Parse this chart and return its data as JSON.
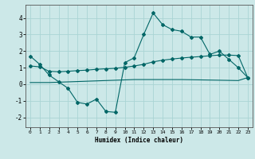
{
  "xlabel": "Humidex (Indice chaleur)",
  "background_color": "#cce8e8",
  "grid_color": "#aad4d4",
  "line_color": "#006666",
  "xlim": [
    -0.5,
    23.5
  ],
  "ylim": [
    -2.6,
    4.8
  ],
  "yticks": [
    -2,
    -1,
    0,
    1,
    2,
    3,
    4
  ],
  "xticks": [
    0,
    1,
    2,
    3,
    4,
    5,
    6,
    7,
    8,
    9,
    10,
    11,
    12,
    13,
    14,
    15,
    16,
    17,
    18,
    19,
    20,
    21,
    22,
    23
  ],
  "line1_x": [
    0,
    1,
    2,
    3,
    4,
    5,
    6,
    7,
    8,
    9,
    10,
    11,
    12,
    13,
    14,
    15,
    16,
    17,
    18,
    19,
    20,
    21,
    22,
    23
  ],
  "line1_y": [
    1.7,
    1.2,
    0.55,
    0.15,
    -0.25,
    -1.1,
    -1.2,
    -0.9,
    -1.65,
    -1.7,
    1.3,
    1.6,
    3.0,
    4.3,
    3.6,
    3.3,
    3.2,
    2.85,
    2.85,
    1.8,
    2.0,
    1.5,
    1.0,
    0.4
  ],
  "line2_x": [
    0,
    1,
    2,
    3,
    4,
    5,
    6,
    7,
    8,
    9,
    10,
    11,
    12,
    13,
    14,
    15,
    16,
    17,
    18,
    19,
    20,
    21,
    22,
    23
  ],
  "line2_y": [
    1.1,
    1.05,
    0.78,
    0.75,
    0.78,
    0.82,
    0.85,
    0.9,
    0.93,
    0.96,
    1.02,
    1.1,
    1.2,
    1.35,
    1.45,
    1.52,
    1.58,
    1.63,
    1.67,
    1.72,
    1.76,
    1.76,
    1.73,
    0.4
  ],
  "line3_x": [
    0,
    1,
    2,
    3,
    4,
    5,
    6,
    7,
    8,
    9,
    10,
    11,
    12,
    13,
    14,
    15,
    16,
    17,
    18,
    19,
    20,
    21,
    22,
    23
  ],
  "line3_y": [
    0.1,
    0.1,
    0.1,
    0.12,
    0.14,
    0.16,
    0.18,
    0.2,
    0.22,
    0.24,
    0.26,
    0.28,
    0.28,
    0.28,
    0.28,
    0.28,
    0.28,
    0.27,
    0.26,
    0.25,
    0.24,
    0.23,
    0.22,
    0.4
  ]
}
